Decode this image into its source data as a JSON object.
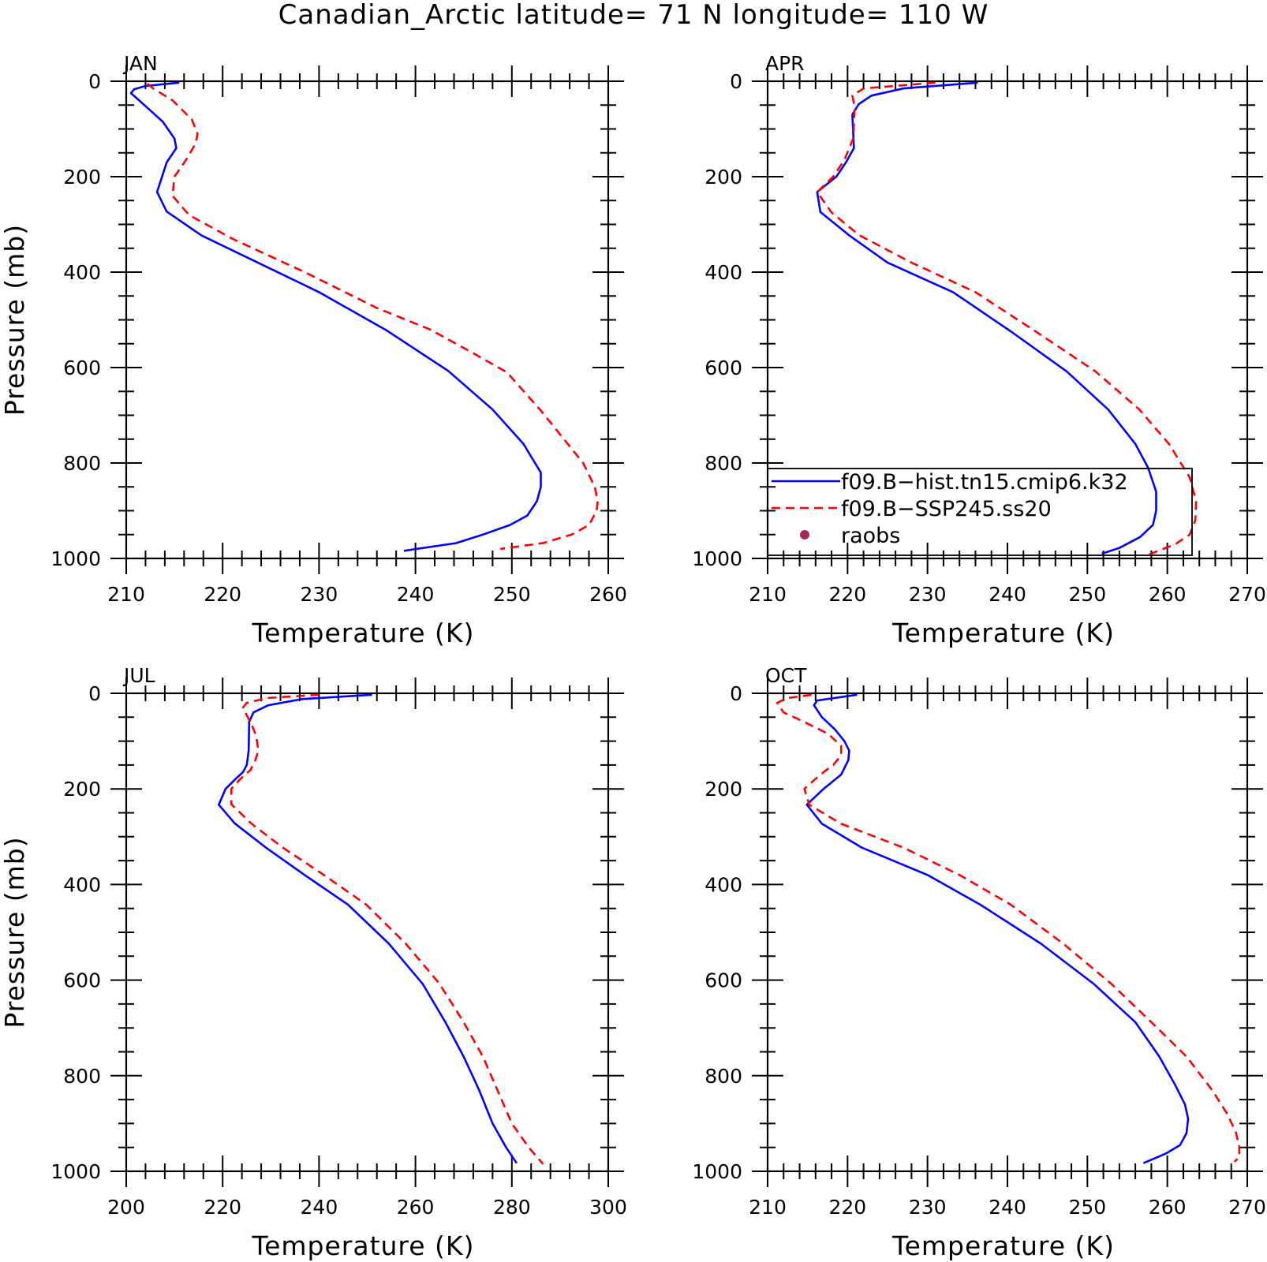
{
  "figure": {
    "title": "Canadian_Arctic  latitude= 71 N longitude= 110 W"
  },
  "colors": {
    "hist": "#0000ff",
    "ssp": "#ff0000",
    "raobs": "#a8285a"
  },
  "legend": {
    "entries": [
      {
        "label": "f09.B−hist.tn15.cmip6.k32",
        "style": "solid",
        "color": "#0000ff"
      },
      {
        "label": "f09.B−SSP245.ss20",
        "style": "dashed",
        "color": "#ff0000"
      },
      {
        "label": "raobs",
        "style": "marker",
        "color": "#a8285a"
      }
    ]
  },
  "chart_data": [
    {
      "type": "line",
      "panel": "JAN",
      "xlabel": "Temperature (K)",
      "ylabel": "Pressure (mb)",
      "xlim": [
        210,
        260
      ],
      "xticks": [
        210,
        220,
        230,
        240,
        250,
        260
      ],
      "ylim": [
        1000,
        0
      ],
      "yticks": [
        0,
        200,
        400,
        600,
        800,
        1000
      ],
      "series": [
        {
          "name": "f09.B−hist.tn15.cmip6.k32",
          "style": "solid",
          "x": [
            215.5,
            212.0,
            210.8,
            210.5,
            211.6,
            213.8,
            215.0,
            215.2,
            214.2,
            213.2,
            214.2,
            217.8,
            230.0,
            237.0,
            243.4,
            248.0,
            251.2,
            253.0,
            253.0,
            252.6,
            251.6,
            249.8,
            247.0,
            244.2,
            238.8
          ],
          "y": [
            3,
            10,
            17,
            25,
            45,
            85,
            120,
            140,
            170,
            232,
            273,
            323,
            442,
            522,
            607,
            688,
            760,
            820,
            850,
            880,
            910,
            930,
            950,
            968,
            984
          ]
        },
        {
          "name": "f09.B−SSP245.ss20",
          "style": "dashed",
          "x": [
            212.2,
            212.8,
            214.8,
            216.8,
            217.4,
            217.2,
            216.2,
            215.0,
            214.8,
            216.5,
            221.0,
            228.5,
            236.0,
            241.5,
            246.0,
            249.5,
            253.0,
            255.8,
            257.4,
            258.6,
            258.9,
            258.8,
            258.0,
            256.2,
            253.2,
            248.8
          ],
          "y": [
            5,
            15,
            40,
            80,
            110,
            130,
            165,
            200,
            240,
            280,
            330,
            400,
            475,
            520,
            570,
            610,
            690,
            760,
            800,
            850,
            880,
            900,
            930,
            950,
            968,
            980
          ]
        }
      ]
    },
    {
      "type": "line",
      "panel": "APR",
      "xlabel": "Temperature (K)",
      "ylabel": "",
      "xlim": [
        210,
        270
      ],
      "xticks": [
        210,
        220,
        230,
        240,
        250,
        260,
        270
      ],
      "ylim": [
        1000,
        0
      ],
      "yticks": [
        0,
        200,
        400,
        600,
        800,
        1000
      ],
      "series": [
        {
          "name": "f09.B−hist.tn15.cmip6.k32",
          "style": "solid",
          "x": [
            236.3,
            227.0,
            223.0,
            221.4,
            220.6,
            220.8,
            219.8,
            218.6,
            216.2,
            216.6,
            220.2,
            225.0,
            233.2,
            240.4,
            247.4,
            252.6,
            256.0,
            257.6,
            258.6,
            258.6,
            258.2,
            256.6,
            254.0,
            251.8
          ],
          "y": [
            3,
            15,
            30,
            48,
            70,
            140,
            170,
            200,
            232,
            274,
            323,
            380,
            442,
            524,
            608,
            688,
            760,
            810,
            860,
            900,
            930,
            955,
            978,
            990
          ]
        },
        {
          "name": "f09.B−SSP245.ss20",
          "style": "dashed",
          "x": [
            231.0,
            222.0,
            220.6,
            220.9,
            220.7,
            219.6,
            218.8,
            218.2,
            216.2,
            218.0,
            221.5,
            228.0,
            236.0,
            243.5,
            251.0,
            256.5,
            260.2,
            262.8,
            263.6,
            263.5,
            262.8,
            261.0,
            257.5
          ],
          "y": [
            3,
            15,
            30,
            55,
            120,
            165,
            185,
            200,
            232,
            275,
            323,
            380,
            442,
            524,
            608,
            688,
            760,
            830,
            880,
            920,
            950,
            970,
            993
          ]
        }
      ]
    },
    {
      "type": "line",
      "panel": "JUL",
      "xlabel": "Temperature (K)",
      "ylabel": "Pressure (mb)",
      "xlim": [
        200,
        300
      ],
      "xticks": [
        200,
        220,
        240,
        260,
        280,
        300
      ],
      "ylim": [
        1000,
        0
      ],
      "yticks": [
        0,
        200,
        400,
        600,
        800,
        1000
      ],
      "series": [
        {
          "name": "f09.B−hist.tn15.cmip6.k32",
          "style": "solid",
          "x": [
            251.0,
            236.5,
            229.5,
            226.4,
            225.5,
            225.4,
            225.0,
            224.2,
            222.6,
            220.6,
            219.2,
            222.5,
            229.0,
            237.0,
            246.0,
            254.5,
            261.5,
            266.2,
            270.0,
            273.2,
            276.0,
            278.8,
            281.0
          ],
          "y": [
            3,
            12,
            25,
            40,
            60,
            120,
            150,
            165,
            180,
            200,
            233,
            272,
            323,
            380,
            442,
            524,
            608,
            688,
            760,
            830,
            900,
            950,
            983
          ]
        },
        {
          "name": "f09.B−SSP245.ss20",
          "style": "dashed",
          "x": [
            240.0,
            229.0,
            225.0,
            224.2,
            225.2,
            226.0,
            227.0,
            227.4,
            226.8,
            225.8,
            223.6,
            221.8,
            221.8,
            226.0,
            232.5,
            241.0,
            249.8,
            258.0,
            265.0,
            270.0,
            274.0,
            277.0,
            280.0,
            283.5,
            286.5
          ],
          "y": [
            3,
            10,
            20,
            30,
            50,
            65,
            90,
            120,
            140,
            160,
            180,
            200,
            232,
            273,
            323,
            380,
            442,
            524,
            608,
            688,
            760,
            830,
            900,
            950,
            985
          ]
        }
      ]
    },
    {
      "type": "line",
      "panel": "OCT",
      "xlabel": "Temperature (K)",
      "ylabel": "",
      "xlim": [
        210,
        270
      ],
      "xticks": [
        210,
        220,
        230,
        240,
        250,
        260,
        270
      ],
      "ylim": [
        1000,
        0
      ],
      "yticks": [
        0,
        200,
        400,
        600,
        800,
        1000
      ],
      "series": [
        {
          "name": "f09.B−hist.tn15.cmip6.k32",
          "style": "solid",
          "x": [
            221.2,
            216.2,
            215.8,
            216.8,
            218.4,
            219.6,
            220.2,
            220.1,
            219.2,
            217.0,
            214.9,
            216.8,
            221.8,
            230.0,
            236.6,
            244.2,
            250.8,
            256.0,
            259.0,
            261.0,
            262.2,
            262.6,
            262.4,
            261.6,
            259.8,
            257.0
          ],
          "y": [
            3,
            15,
            25,
            50,
            75,
            100,
            120,
            140,
            170,
            200,
            233,
            273,
            323,
            380,
            442,
            524,
            608,
            688,
            760,
            820,
            860,
            890,
            920,
            945,
            963,
            983
          ]
        },
        {
          "name": "f09.B−SSP245.ss20",
          "style": "dashed",
          "x": [
            215.5,
            212.4,
            211.2,
            212.0,
            214.6,
            217.6,
            219.2,
            219.2,
            218.2,
            216.6,
            214.6,
            215.2,
            219.2,
            227.0,
            234.0,
            240.4,
            247.0,
            253.0,
            258.0,
            262.4,
            265.6,
            267.5,
            268.6,
            269.0,
            269.0,
            268.4
          ],
          "y": [
            3,
            10,
            20,
            40,
            60,
            85,
            110,
            130,
            150,
            170,
            200,
            233,
            273,
            323,
            380,
            442,
            524,
            608,
            688,
            760,
            830,
            880,
            920,
            950,
            970,
            980
          ]
        }
      ]
    }
  ]
}
